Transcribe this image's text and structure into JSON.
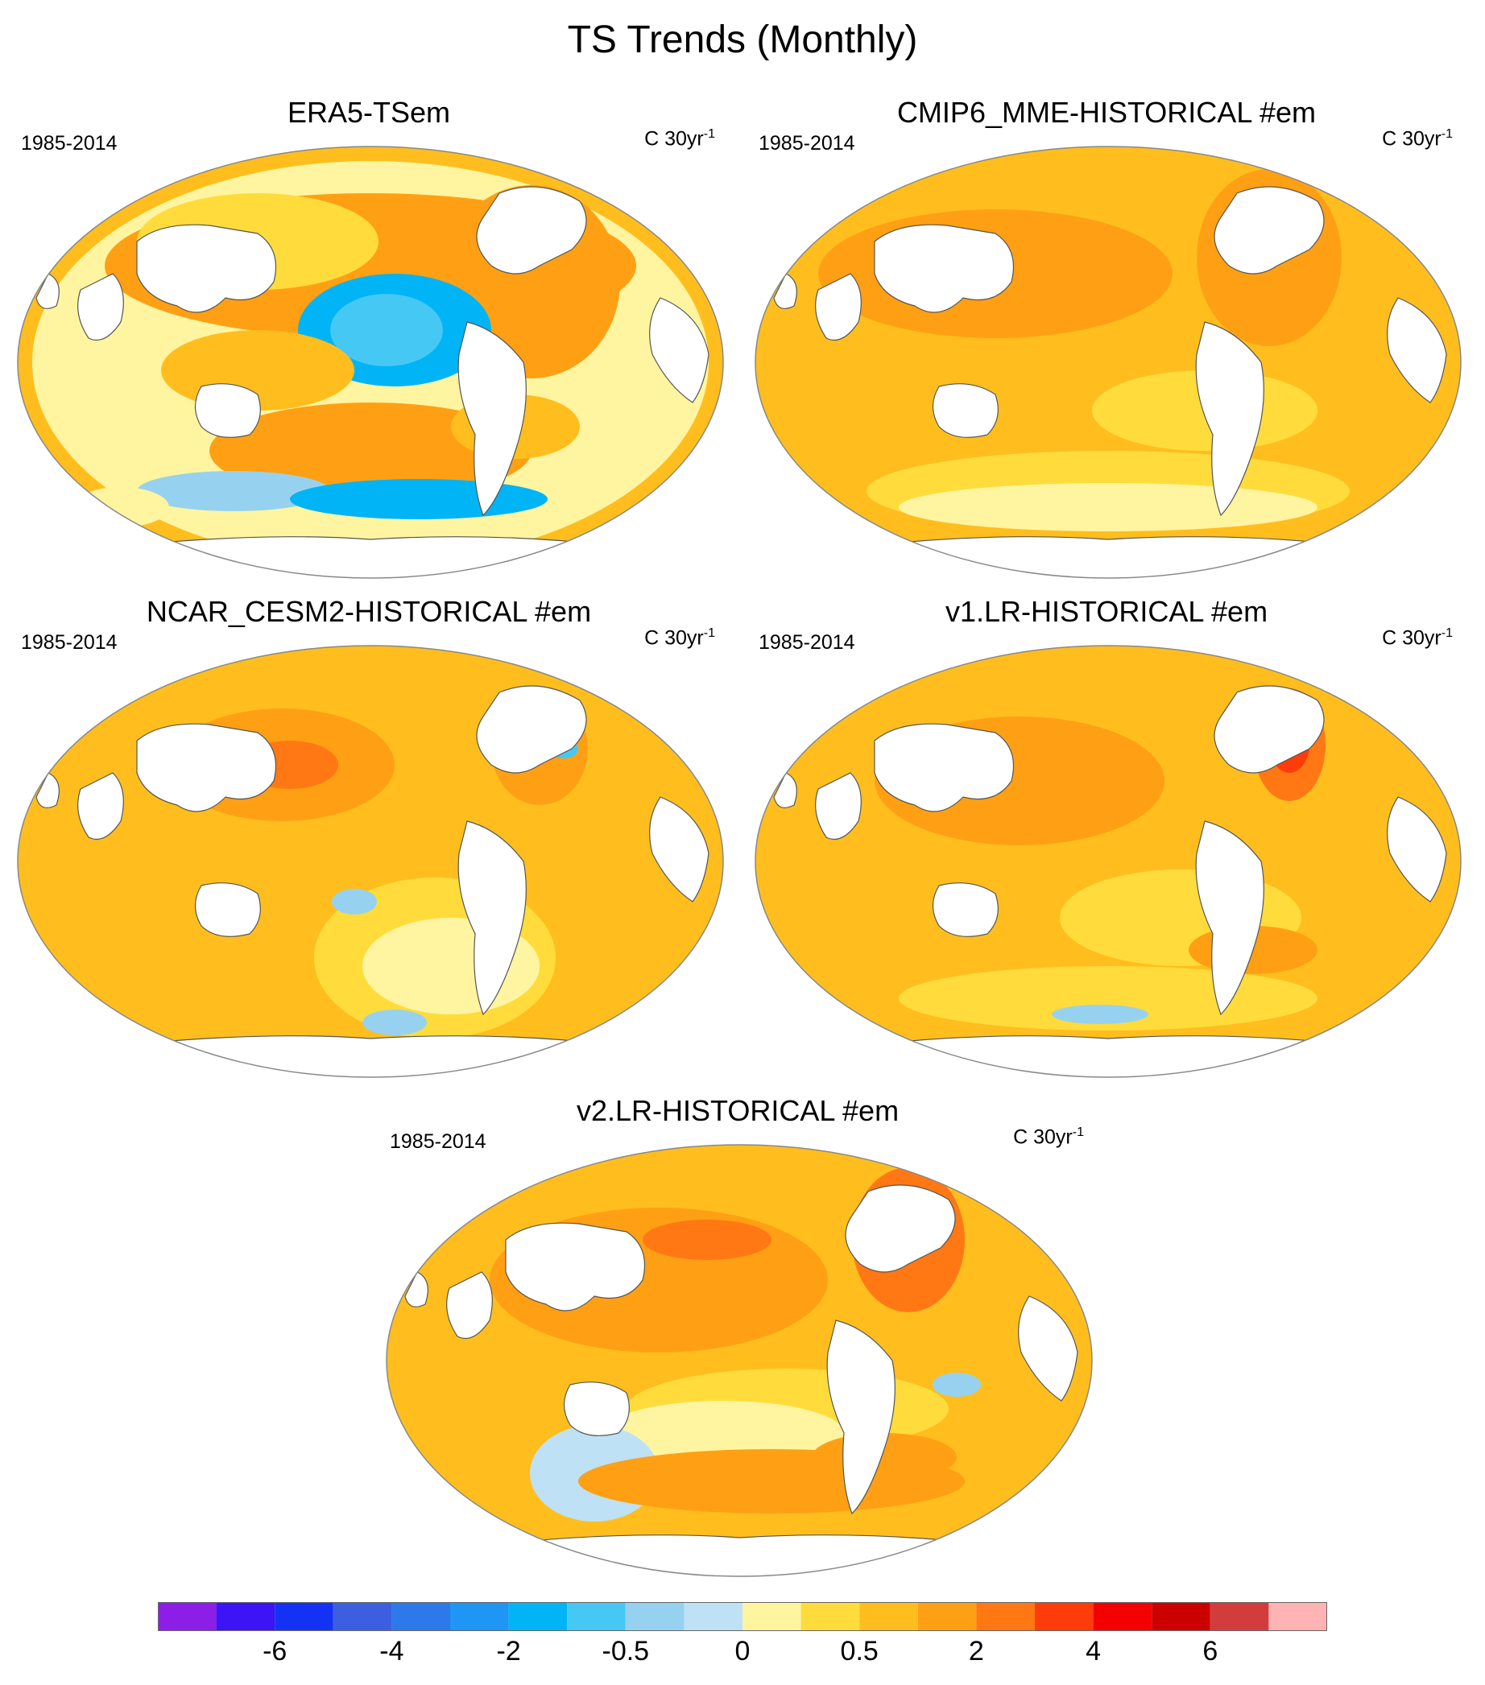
{
  "title": "TS Trends (Monthly)",
  "panels": [
    {
      "title": "ERA5-TSem",
      "years": "1985-2014",
      "units_base": "C 30yr",
      "units_exp": "-1",
      "style": "noisy"
    },
    {
      "title": "CMIP6_MME-HISTORICAL  #em",
      "years": "1985-2014",
      "units_base": "C 30yr",
      "units_exp": "-1",
      "style": "smooth"
    },
    {
      "title": "NCAR_CESM2-HISTORICAL  #em",
      "years": "1985-2014",
      "units_base": "C 30yr",
      "units_exp": "-1",
      "style": "cesm"
    },
    {
      "title": "v1.LR-HISTORICAL  #em",
      "years": "1985-2014",
      "units_base": "C 30yr",
      "units_exp": "-1",
      "style": "v1"
    },
    {
      "title": "v2.LR-HISTORICAL  #em",
      "years": "1985-2014",
      "units_base": "C 30yr",
      "units_exp": "-1",
      "style": "v2"
    }
  ],
  "colorbar": {
    "colors": [
      "#8c1ee8",
      "#3c14f5",
      "#1432f5",
      "#3c5fe1",
      "#2d78eb",
      "#1e96f5",
      "#00b4f5",
      "#46c8f5",
      "#96d2f0",
      "#bee1f5",
      "#fff5a0",
      "#ffdc3c",
      "#ffbe1e",
      "#ffa014",
      "#ff7814",
      "#ff3c0a",
      "#f50000",
      "#cd0000",
      "#d23c3c",
      "#ffb4b4"
    ],
    "labels": [
      {
        "text": "-6",
        "boundary": 2
      },
      {
        "text": "-4",
        "boundary": 4
      },
      {
        "text": "-2",
        "boundary": 6
      },
      {
        "text": "-0.5",
        "boundary": 8
      },
      {
        "text": "0",
        "boundary": 10
      },
      {
        "text": "0.5",
        "boundary": 12
      },
      {
        "text": "2",
        "boundary": 14
      },
      {
        "text": "4",
        "boundary": 16
      },
      {
        "text": "6",
        "boundary": 18
      }
    ]
  }
}
